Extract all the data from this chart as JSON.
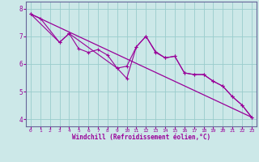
{
  "bg_color": "#cce8e8",
  "line_color": "#990099",
  "grid_color": "#99cccc",
  "spine_color": "#666699",
  "xlim": [
    -0.5,
    23.5
  ],
  "ylim": [
    3.75,
    8.25
  ],
  "yticks": [
    4,
    5,
    6,
    7,
    8
  ],
  "xticks": [
    0,
    1,
    2,
    3,
    4,
    5,
    6,
    7,
    8,
    9,
    10,
    11,
    12,
    13,
    14,
    15,
    16,
    17,
    18,
    19,
    20,
    21,
    22,
    23
  ],
  "xlabel": "Windchill (Refroidissement éolien,°C)",
  "series1_x": [
    0,
    1,
    3,
    4,
    5,
    6,
    7,
    8,
    9,
    10,
    11,
    12,
    13,
    14,
    15,
    16,
    17,
    18,
    19,
    20,
    21,
    22,
    23
  ],
  "series1_y": [
    7.8,
    7.65,
    6.78,
    7.1,
    6.55,
    6.42,
    6.52,
    6.32,
    5.85,
    5.92,
    6.62,
    7.0,
    6.45,
    6.22,
    6.28,
    5.68,
    5.62,
    5.62,
    5.38,
    5.2,
    4.82,
    4.52,
    4.08
  ],
  "series2_x": [
    0,
    3,
    4,
    9,
    10,
    11,
    12,
    13,
    14,
    15,
    16,
    17,
    18,
    19,
    20,
    21,
    22,
    23
  ],
  "series2_y": [
    7.8,
    6.78,
    7.1,
    5.85,
    5.48,
    6.62,
    7.0,
    6.42,
    6.22,
    6.28,
    5.68,
    5.62,
    5.62,
    5.38,
    5.2,
    4.82,
    4.52,
    4.08
  ],
  "trend_x": [
    0,
    23
  ],
  "trend_y": [
    7.8,
    4.08
  ]
}
